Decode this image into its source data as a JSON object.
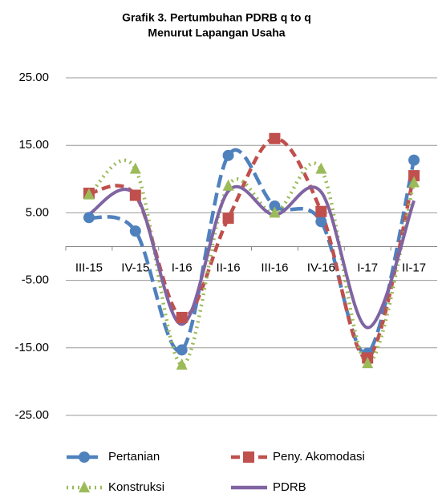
{
  "chart_data": {
    "type": "line",
    "title": [
      "Grafik 3. Pertumbuhan PDRB q to q",
      "Menurut Lapangan Usaha"
    ],
    "categories": [
      "III-15",
      "IV-15",
      "I-16",
      "II-16",
      "III-16",
      "IV-16",
      "I-17",
      "II-17"
    ],
    "series": [
      {
        "name": "Pertanian",
        "color": "#4f81bd",
        "line_style": "dash",
        "marker": "circle",
        "values": [
          4.3,
          2.3,
          -15.3,
          13.5,
          6.0,
          3.7,
          -15.8,
          12.8
        ]
      },
      {
        "name": "Peny. Akomodasi",
        "color": "#c0504d",
        "line_style": "dash",
        "marker": "square",
        "values": [
          7.9,
          7.6,
          -10.5,
          4.2,
          16.0,
          5.2,
          -16.5,
          10.5
        ]
      },
      {
        "name": "Konstruksi",
        "color": "#9bbb59",
        "line_style": "dot",
        "marker": "triangle",
        "values": [
          7.7,
          11.5,
          -17.5,
          9.0,
          5.0,
          11.5,
          -17.3,
          9.5
        ]
      },
      {
        "name": "PDRB",
        "color": "#8064a2",
        "line_style": "solid",
        "values": [
          4.8,
          7.7,
          -11.5,
          8.2,
          4.7,
          8.1,
          -12.0,
          6.8
        ]
      }
    ],
    "smooth": true,
    "ylim": [
      -25,
      25
    ],
    "yticks": [
      {
        "value": -25,
        "label": "-25.00"
      },
      {
        "value": -15,
        "label": "-15.00"
      },
      {
        "value": -5,
        "label": "-5.00"
      },
      {
        "value": 5,
        "label": "5.00"
      },
      {
        "value": 15,
        "label": "15.00"
      },
      {
        "value": 25,
        "label": "25.00"
      }
    ],
    "grid": true,
    "legend": "bottom"
  }
}
